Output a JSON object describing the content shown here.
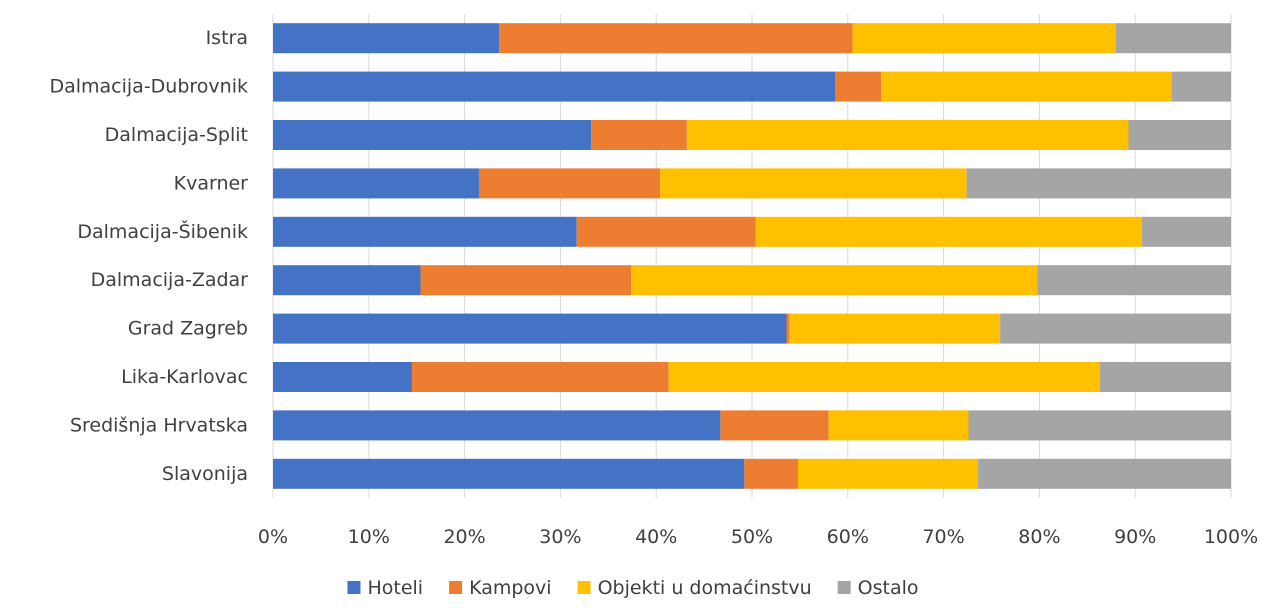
{
  "chart_data": {
    "type": "bar",
    "orientation": "horizontal",
    "stacked": "percent",
    "categories": [
      "Istra",
      "Dalmacija-Dubrovnik",
      "Dalmacija-Split",
      "Kvarner",
      "Dalmacija-Šibenik",
      "Dalmacija-Zadar",
      "Grad Zagreb",
      "Lika-Karlovac",
      "Središnja Hrvatska",
      "Slavonija"
    ],
    "series": [
      {
        "name": "Hoteli",
        "color": "#4472C4",
        "values": [
          23.6,
          58.7,
          33.2,
          21.5,
          31.7,
          15.4,
          53.6,
          14.5,
          46.7,
          49.2
        ]
      },
      {
        "name": "Kampovi",
        "color": "#ED7D31",
        "values": [
          36.9,
          4.8,
          10.0,
          18.9,
          18.7,
          22.0,
          0.3,
          26.8,
          11.3,
          5.6
        ]
      },
      {
        "name": "Objekti u domaćinstvu",
        "color": "#FFC000",
        "values": [
          27.5,
          30.3,
          46.1,
          32.0,
          40.3,
          42.4,
          22.0,
          45.0,
          14.6,
          18.8
        ]
      },
      {
        "name": "Ostalo",
        "color": "#A5A5A5",
        "values": [
          12.0,
          6.2,
          10.7,
          27.6,
          9.3,
          20.2,
          24.1,
          13.7,
          27.4,
          26.4
        ]
      }
    ],
    "x_ticks": [
      "0%",
      "10%",
      "20%",
      "30%",
      "40%",
      "50%",
      "60%",
      "70%",
      "80%",
      "90%",
      "100%"
    ],
    "xlim": [
      0,
      100
    ],
    "grid": true,
    "legend_position": "bottom"
  }
}
